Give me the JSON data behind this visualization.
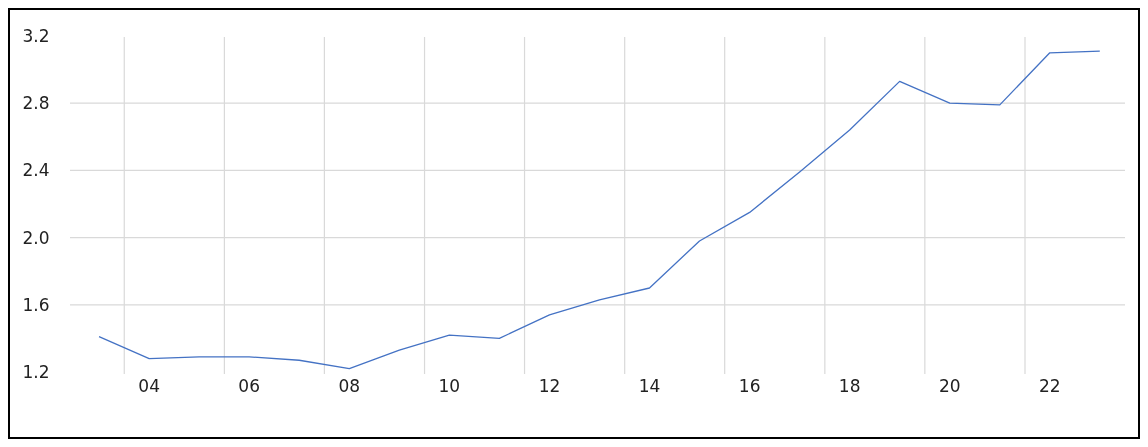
{
  "chart_data": {
    "type": "line",
    "x": [
      "2003-07",
      "2004-07",
      "2005-07",
      "2006-07",
      "2007-07",
      "2008-07",
      "2009-07",
      "2010-07",
      "2011-07",
      "2012-07",
      "2013-07",
      "2014-07",
      "2015-07",
      "2016-07",
      "2017-07",
      "2018-07",
      "2019-07",
      "2020-07",
      "2021-07",
      "2022-07",
      "2023-07"
    ],
    "series": [
      {
        "color": "#4472c4",
        "values": [
          1.41,
          1.28,
          1.29,
          1.29,
          1.27,
          1.22,
          1.33,
          1.42,
          1.4,
          1.54,
          1.63,
          1.7,
          1.98,
          2.15,
          2.39,
          2.64,
          2.93,
          2.8,
          2.79,
          3.1,
          3.11
        ]
      }
    ],
    "xlim": [
      "2002-12",
      "2024-01"
    ],
    "xticks": [
      {
        "value": "2004",
        "label": null
      },
      {
        "value": "2004-07",
        "label": "04"
      },
      {
        "value": "2006",
        "label": null
      },
      {
        "value": "2006-07",
        "label": "06"
      },
      {
        "value": "2008",
        "label": null
      },
      {
        "value": "2008-07",
        "label": "08"
      },
      {
        "value": "2010",
        "label": null
      },
      {
        "value": "2010-07",
        "label": "10"
      },
      {
        "value": "2012",
        "label": null
      },
      {
        "value": "2012-07",
        "label": "12"
      },
      {
        "value": "2014",
        "label": null
      },
      {
        "value": "2014-07",
        "label": "14"
      },
      {
        "value": "2016",
        "label": null
      },
      {
        "value": "2016-07",
        "label": "16"
      },
      {
        "value": "2018",
        "label": null
      },
      {
        "value": "2018-07",
        "label": "18"
      },
      {
        "value": "2020",
        "label": null
      },
      {
        "value": "2020-07",
        "label": "20"
      },
      {
        "value": "2022",
        "label": null
      },
      {
        "value": "2022-07",
        "label": "22"
      }
    ],
    "ylim": [
      1.2,
      3.2
    ],
    "yticks": [
      {
        "value": 1.2,
        "label": "1.2"
      },
      {
        "value": 1.6,
        "label": "1.6"
      },
      {
        "value": 2.0,
        "label": "2.0"
      },
      {
        "value": 2.4,
        "label": "2.4"
      },
      {
        "value": 2.8,
        "label": "2.8"
      },
      {
        "value": 3.2,
        "label": "3.2"
      }
    ],
    "grid": true
  }
}
